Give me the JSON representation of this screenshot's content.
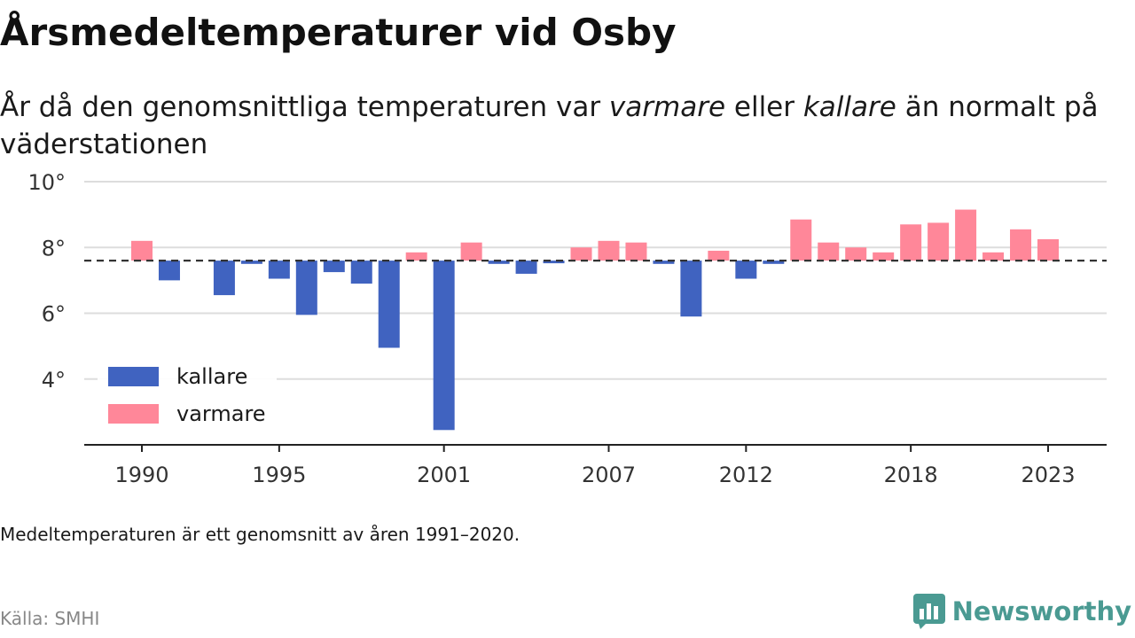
{
  "header": {
    "title": "Årsmedeltemperaturer vid Osby",
    "subtitle_pre": "År då den genomsnittliga temperaturen var ",
    "subtitle_warm": "varmare",
    "subtitle_mid": " eller ",
    "subtitle_cold": "kallare",
    "subtitle_post": " än normalt på väderstationen"
  },
  "footer": {
    "note": "Medeltemperaturen är ett genomsnitt av åren 1991–2020.",
    "source": "Källa: SMHI",
    "brand": "Newsworthy"
  },
  "colors": {
    "cold": "#4063c0",
    "warm": "#ff8799",
    "grid": "#dddddd",
    "axis": "#222222",
    "brand": "#4a9a92"
  },
  "chart_data": {
    "type": "bar",
    "title": "Årsmedeltemperaturer vid Osby",
    "baseline": 7.6,
    "ylim": [
      2.0,
      10.0
    ],
    "yticks": [
      4,
      6,
      8,
      10
    ],
    "ytick_labels": [
      "4°",
      "6°",
      "8°",
      "10°"
    ],
    "xticks": [
      1990,
      1995,
      2001,
      2007,
      2012,
      2018,
      2023
    ],
    "xtick_labels": [
      "1990",
      "1995",
      "2001",
      "2007",
      "2012",
      "2018",
      "2023"
    ],
    "grid": true,
    "legend_position": "bottom-left",
    "legend": [
      {
        "key": "cold",
        "label": "kallare"
      },
      {
        "key": "warm",
        "label": "varmare"
      }
    ],
    "years": [
      1990,
      1991,
      1992,
      1993,
      1994,
      1995,
      1996,
      1997,
      1998,
      1999,
      2000,
      2001,
      2002,
      2003,
      2004,
      2005,
      2006,
      2007,
      2008,
      2009,
      2010,
      2011,
      2012,
      2013,
      2014,
      2015,
      2016,
      2017,
      2018,
      2019,
      2020,
      2021,
      2022,
      2023
    ],
    "values": [
      8.2,
      7.0,
      null,
      6.55,
      7.5,
      7.05,
      5.95,
      7.25,
      6.9,
      4.95,
      7.85,
      2.45,
      8.15,
      7.5,
      7.2,
      7.55,
      8.0,
      8.2,
      8.15,
      7.5,
      5.9,
      7.9,
      7.05,
      7.5,
      8.85,
      8.15,
      8.0,
      7.85,
      8.7,
      8.75,
      9.15,
      7.85,
      8.55,
      8.25
    ]
  }
}
